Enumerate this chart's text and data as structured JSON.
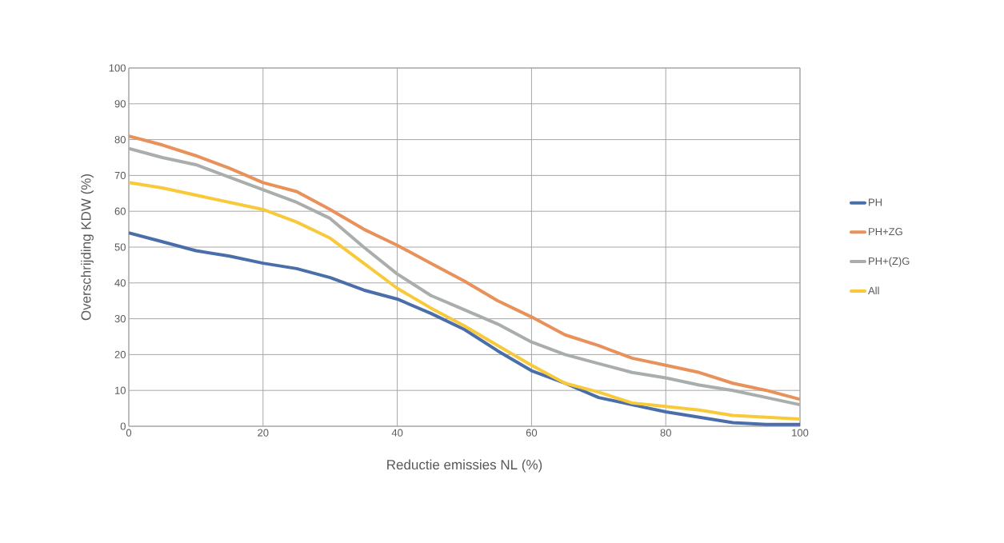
{
  "chart_data": {
    "type": "line",
    "xlabel": "Reductie emissies NL (%)",
    "ylabel": "Overschrijding KDW (%)",
    "x": [
      0,
      5,
      10,
      15,
      20,
      25,
      30,
      35,
      40,
      45,
      50,
      55,
      60,
      65,
      70,
      75,
      80,
      85,
      90,
      95,
      100
    ],
    "series": [
      {
        "name": "PH",
        "color": "#4a6eaa",
        "values": [
          54,
          51.5,
          49,
          47.5,
          45.5,
          44,
          41.5,
          38,
          35.5,
          31.5,
          27,
          21,
          15.5,
          12,
          8,
          6,
          4,
          2.5,
          1,
          0.5,
          0.5
        ]
      },
      {
        "name": "PH+ZG",
        "color": "#e8915a",
        "values": [
          81,
          78.5,
          75.5,
          72,
          68,
          65.5,
          60.5,
          55,
          50.5,
          45.5,
          40.5,
          35,
          30.5,
          25.5,
          22.5,
          19,
          17,
          15,
          12,
          10,
          7.5
        ]
      },
      {
        "name": "PH+(Z)G",
        "color": "#a9aeac",
        "values": [
          77.5,
          75,
          73,
          69.5,
          66,
          62.5,
          58,
          50,
          42.5,
          36.5,
          32.5,
          28.5,
          23.5,
          20,
          17.5,
          15,
          13.5,
          11.5,
          10,
          8,
          6
        ]
      },
      {
        "name": "All",
        "color": "#f8c93b",
        "values": [
          68,
          66.5,
          64.5,
          62.5,
          60.5,
          57,
          52.5,
          45.5,
          38.5,
          33,
          28,
          22.5,
          17,
          12,
          9.5,
          6.5,
          5.5,
          4.5,
          3,
          2.5,
          2
        ]
      }
    ],
    "xlim": [
      0,
      100
    ],
    "ylim": [
      0,
      100
    ],
    "xticks": [
      0,
      20,
      40,
      60,
      80,
      100
    ],
    "yticks": [
      0,
      10,
      20,
      30,
      40,
      50,
      60,
      70,
      80,
      90,
      100
    ],
    "grid": true,
    "legend": "right",
    "marker": "none",
    "line_style": "solid"
  }
}
